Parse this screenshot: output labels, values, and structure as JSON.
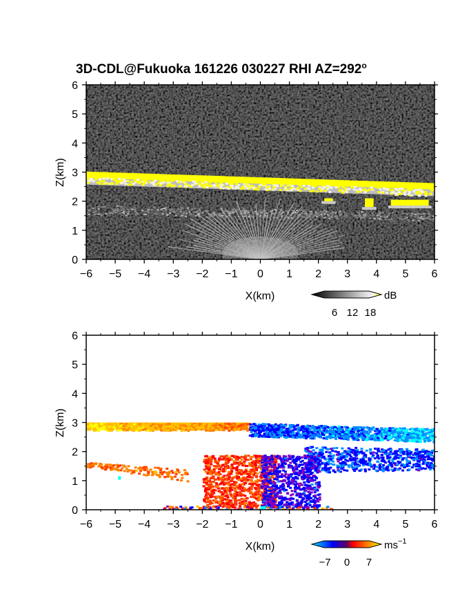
{
  "title_main": "3D-CDL@Fukuoka 161226 030227 RHI AZ=292",
  "title_deg": "o",
  "chart_data": [
    {
      "type": "heatmap",
      "panel": "backscatter",
      "xlabel": "X(km)",
      "ylabel": "Z(km)",
      "xlim": [
        -6,
        6
      ],
      "ylim": [
        0,
        6
      ],
      "xticks": [
        "−6",
        "−5",
        "−4",
        "−3",
        "−2",
        "−1",
        "0",
        "1",
        "2",
        "3",
        "4",
        "5",
        "6"
      ],
      "yticks": [
        "0",
        "1",
        "2",
        "3",
        "4",
        "5",
        "6"
      ],
      "colorbar": {
        "unit": "dB",
        "ticks": [
          "6",
          "12",
          "18"
        ],
        "colors": [
          "#000000",
          "#555555",
          "#aaaaaa",
          "#eeeeee",
          "#ffff00"
        ]
      },
      "features": [
        {
          "name": "cloud base layer",
          "x": [
            -6,
            6
          ],
          "z": [
            2.95,
            2.55
          ],
          "value_db": 18
        },
        {
          "name": "aerosol layer",
          "x": [
            -6,
            6
          ],
          "z": [
            1.8,
            1.55
          ],
          "value_db": 8
        },
        {
          "name": "near-field fan",
          "x": [
            -3.5,
            3.5
          ],
          "z": [
            0,
            2.0
          ],
          "value_db": 9
        },
        {
          "name": "patch",
          "x": [
            2.2,
            2.5
          ],
          "z": [
            2.0,
            2.1
          ],
          "value_db": 18
        },
        {
          "name": "patch",
          "x": [
            3.6,
            3.9
          ],
          "z": [
            1.8,
            2.1
          ],
          "value_db": 18
        },
        {
          "name": "patch",
          "x": [
            4.5,
            5.8
          ],
          "z": [
            1.85,
            2.05
          ],
          "value_db": 18
        }
      ]
    },
    {
      "type": "heatmap",
      "panel": "radial-velocity",
      "xlabel": "X(km)",
      "ylabel": "Z(km)",
      "xlim": [
        -6,
        6
      ],
      "ylim": [
        0,
        6
      ],
      "xticks": [
        "−6",
        "−5",
        "−4",
        "−3",
        "−2",
        "−1",
        "0",
        "1",
        "2",
        "3",
        "4",
        "5",
        "6"
      ],
      "yticks": [
        "0",
        "1",
        "2",
        "3",
        "4",
        "5",
        "6"
      ],
      "colorbar": {
        "unit": "ms",
        "unit_sup": "−1",
        "ticks": [
          "−7",
          "0",
          "7"
        ],
        "colors": [
          "#00e5ff",
          "#0000ff",
          "#ff0000",
          "#ff8000",
          "#ffff00"
        ]
      },
      "features": [
        {
          "name": "cloud layer positive",
          "x": [
            -6,
            -0.4
          ],
          "z": [
            2.75,
            3.0
          ],
          "velocity": [
            6,
            3
          ]
        },
        {
          "name": "cloud layer negative",
          "x": [
            -0.4,
            6
          ],
          "z": [
            2.4,
            3.05
          ],
          "velocity": [
            -4,
            -6
          ]
        },
        {
          "name": "mid layer positive",
          "x": [
            -6,
            -2.5
          ],
          "z": [
            1.0,
            1.7
          ],
          "velocity": 3
        },
        {
          "name": "mid layer negative",
          "x": [
            1.5,
            6
          ],
          "z": [
            1.4,
            2.2
          ],
          "velocity": -4
        },
        {
          "name": "fan positive",
          "x": [
            -2,
            0.5
          ],
          "z": [
            0.1,
            1.9
          ],
          "velocity": 2
        },
        {
          "name": "fan negative",
          "x": [
            0,
            2
          ],
          "z": [
            0.1,
            1.9
          ],
          "velocity": -3
        }
      ]
    }
  ]
}
